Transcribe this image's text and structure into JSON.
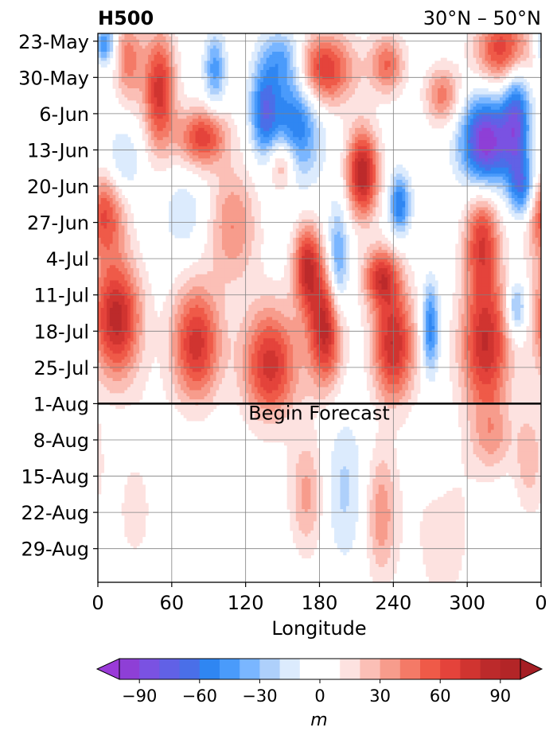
{
  "chart_data": {
    "type": "heatmap",
    "title_left": "H500",
    "title_right": "30°N – 50°N",
    "xlabel": "Longitude",
    "x_ticks": [
      "0",
      "60",
      "120",
      "180",
      "240",
      "300",
      "0"
    ],
    "x_range": [
      0,
      360
    ],
    "y_ticks": [
      "23-May",
      "30-May",
      "6-Jun",
      "13-Jun",
      "20-Jun",
      "27-Jun",
      "4-Jul",
      "11-Jul",
      "18-Jul",
      "25-Jul",
      "1-Aug",
      "8-Aug",
      "15-Aug",
      "22-Aug",
      "29-Aug"
    ],
    "forecast_label": "Begin Forecast",
    "forecast_start_day": 71.5,
    "total_days": 106,
    "grid": true,
    "colorbar": {
      "label": "m",
      "ticks": [
        "−90",
        "−60",
        "−30",
        "0",
        "30",
        "60",
        "90"
      ],
      "tick_values": [
        -90,
        -60,
        -30,
        0,
        30,
        60,
        90
      ],
      "levels": [
        -100,
        -90,
        -80,
        -70,
        -60,
        -50,
        -40,
        -30,
        -20,
        -10,
        10,
        20,
        30,
        40,
        50,
        60,
        70,
        80,
        90,
        100
      ],
      "under_color": "#9a3ad8",
      "over_color": "#a51e24",
      "colors": [
        "#8e3fd6",
        "#7a52e2",
        "#6161e6",
        "#4a6fe8",
        "#2f86f2",
        "#4a9bfb",
        "#7ab6ff",
        "#aed0fb",
        "#dcebfd",
        "#ffffff",
        "#fde2e0",
        "#fbbfb6",
        "#f79c8c",
        "#f47a67",
        "#ef5a48",
        "#e4433b",
        "#d03430",
        "#bc2a2b"
      ]
    },
    "anomaly_centers": [
      {
        "lon": 25,
        "day": 5,
        "val": 45,
        "sl": 8,
        "sd": 6
      },
      {
        "lon": 50,
        "day": 11,
        "val": 75,
        "sl": 9,
        "sd": 8
      },
      {
        "lon": 85,
        "day": 20,
        "val": 65,
        "sl": 14,
        "sd": 4
      },
      {
        "lon": 5,
        "day": 35,
        "val": 60,
        "sl": 12,
        "sd": 6
      },
      {
        "lon": 15,
        "day": 55,
        "val": 85,
        "sl": 14,
        "sd": 8
      },
      {
        "lon": 80,
        "day": 60,
        "val": 75,
        "sl": 14,
        "sd": 8
      },
      {
        "lon": 140,
        "day": 64,
        "val": 75,
        "sl": 16,
        "sd": 8
      },
      {
        "lon": 185,
        "day": 57,
        "val": 85,
        "sl": 10,
        "sd": 8
      },
      {
        "lon": 240,
        "day": 60,
        "val": 80,
        "sl": 12,
        "sd": 8
      },
      {
        "lon": 315,
        "day": 60,
        "val": 80,
        "sl": 14,
        "sd": 9
      },
      {
        "lon": 215,
        "day": 27,
        "val": 90,
        "sl": 9,
        "sd": 6
      },
      {
        "lon": 182,
        "day": 7,
        "val": 75,
        "sl": 18,
        "sd": 5
      },
      {
        "lon": 235,
        "day": 6,
        "val": 50,
        "sl": 10,
        "sd": 4
      },
      {
        "lon": 330,
        "day": 3,
        "val": 70,
        "sl": 16,
        "sd": 5
      },
      {
        "lon": 170,
        "day": 45,
        "val": 75,
        "sl": 8,
        "sd": 6
      },
      {
        "lon": 230,
        "day": 47,
        "val": 65,
        "sl": 10,
        "sd": 4
      },
      {
        "lon": 312,
        "day": 40,
        "val": 65,
        "sl": 10,
        "sd": 7
      },
      {
        "lon": 150,
        "day": 25,
        "val": 50,
        "sl": 8,
        "sd": 4
      },
      {
        "lon": 110,
        "day": 37,
        "val": 40,
        "sl": 14,
        "sd": 8
      },
      {
        "lon": 280,
        "day": 12,
        "val": 45,
        "sl": 10,
        "sd": 4
      },
      {
        "lon": 160,
        "day": 17,
        "val": -65,
        "sl": 14,
        "sd": 8
      },
      {
        "lon": 135,
        "day": 15,
        "val": -60,
        "sl": 8,
        "sd": 6
      },
      {
        "lon": 315,
        "day": 21,
        "val": -100,
        "sl": 14,
        "sd": 6
      },
      {
        "lon": 340,
        "day": 17,
        "val": -70,
        "sl": 8,
        "sd": 8
      },
      {
        "lon": 345,
        "day": 30,
        "val": -55,
        "sl": 7,
        "sd": 4
      },
      {
        "lon": 245,
        "day": 33,
        "val": -60,
        "sl": 6,
        "sd": 4
      },
      {
        "lon": 150,
        "day": 5,
        "val": -40,
        "sl": 12,
        "sd": 4
      },
      {
        "lon": 95,
        "day": 7,
        "val": -45,
        "sl": 6,
        "sd": 5
      },
      {
        "lon": 5,
        "day": 2,
        "val": -55,
        "sl": 6,
        "sd": 3
      },
      {
        "lon": 270,
        "day": 57,
        "val": -60,
        "sl": 5,
        "sd": 6
      },
      {
        "lon": 340,
        "day": 53,
        "val": -45,
        "sl": 6,
        "sd": 4
      },
      {
        "lon": 195,
        "day": 45,
        "val": -50,
        "sl": 6,
        "sd": 8
      },
      {
        "lon": 70,
        "day": 35,
        "val": -20,
        "sl": 12,
        "sd": 5
      },
      {
        "lon": 20,
        "day": 25,
        "val": -25,
        "sl": 10,
        "sd": 5
      },
      {
        "lon": 200,
        "day": 88,
        "val": -30,
        "sl": 12,
        "sd": 10
      },
      {
        "lon": 170,
        "day": 89,
        "val": 45,
        "sl": 10,
        "sd": 8
      },
      {
        "lon": 230,
        "day": 93,
        "val": 50,
        "sl": 9,
        "sd": 9
      },
      {
        "lon": 320,
        "day": 78,
        "val": 40,
        "sl": 12,
        "sd": 5
      },
      {
        "lon": 350,
        "day": 82,
        "val": 35,
        "sl": 8,
        "sd": 7
      },
      {
        "lon": 30,
        "day": 92,
        "val": 15,
        "sl": 20,
        "sd": 15
      },
      {
        "lon": 280,
        "day": 95,
        "val": 20,
        "sl": 20,
        "sd": 15
      },
      {
        "lon": 275,
        "day": 80,
        "val": -20,
        "sl": 10,
        "sd": 6
      }
    ]
  }
}
